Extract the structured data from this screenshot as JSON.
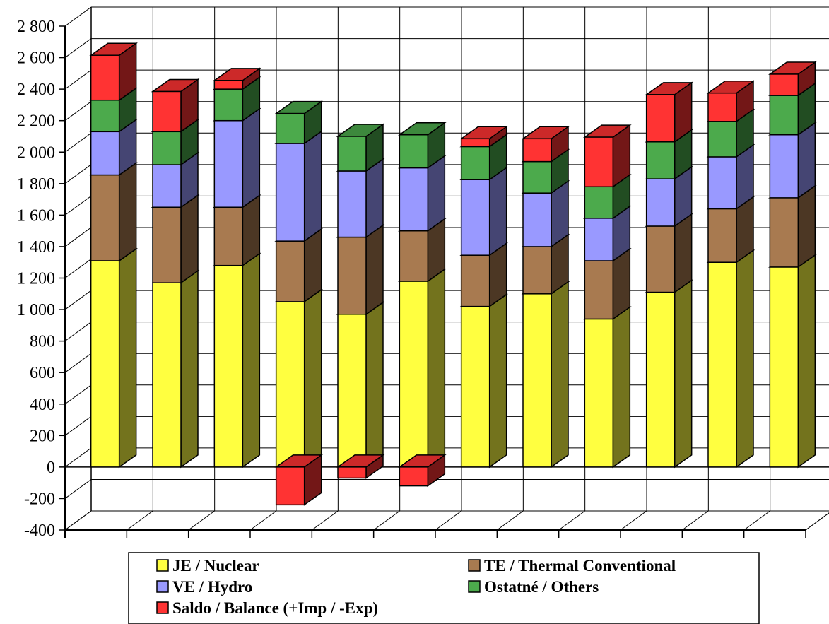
{
  "chart_data": {
    "type": "bar",
    "stacked": true,
    "three_d": true,
    "title": "",
    "xlabel": "",
    "ylabel": "",
    "ylim": [
      -400,
      2800
    ],
    "yticks": [
      {
        "value": 2800,
        "label": "2 800"
      },
      {
        "value": 2600,
        "label": "2 600"
      },
      {
        "value": 2400,
        "label": "2 400"
      },
      {
        "value": 2200,
        "label": "2 200"
      },
      {
        "value": 2000,
        "label": "2 000"
      },
      {
        "value": 1800,
        "label": "1 800"
      },
      {
        "value": 1600,
        "label": "1 600"
      },
      {
        "value": 1400,
        "label": "1 400"
      },
      {
        "value": 1200,
        "label": "1 200"
      },
      {
        "value": 1000,
        "label": "1 000"
      },
      {
        "value": 800,
        "label": "800"
      },
      {
        "value": 600,
        "label": "600"
      },
      {
        "value": 400,
        "label": "400"
      },
      {
        "value": 200,
        "label": "200"
      },
      {
        "value": 0,
        "label": "0"
      },
      {
        "value": -200,
        "label": "-200"
      },
      {
        "value": -400,
        "label": "-400"
      }
    ],
    "grid": true,
    "legend_position": "bottom",
    "categories": [
      "",
      "",
      "",
      "",
      "",
      "",
      "",
      "",
      "",
      "",
      "",
      ""
    ],
    "series": [
      {
        "name": "JE / Nuclear",
        "color": "#ffff40",
        "values": [
          1310,
          1170,
          1280,
          1050,
          970,
          1180,
          1020,
          1100,
          940,
          1110,
          1300,
          1270
        ]
      },
      {
        "name": "TE / Thermal Conventional",
        "color": "#a87a50",
        "values": [
          545,
          480,
          370,
          385,
          490,
          320,
          325,
          300,
          370,
          420,
          340,
          440
        ]
      },
      {
        "name": "VE / Hydro",
        "color": "#9999ff",
        "values": [
          275,
          270,
          550,
          620,
          420,
          400,
          480,
          340,
          270,
          300,
          330,
          400
        ]
      },
      {
        "name": "Ostatné / Others",
        "color": "#4caa4c",
        "values": [
          200,
          210,
          200,
          190,
          220,
          210,
          210,
          200,
          200,
          235,
          225,
          250
        ]
      },
      {
        "name": "Saldo / Balance (+Imp / -Exp)",
        "color": "#ff3333",
        "values": [
          285,
          255,
          55,
          -240,
          -70,
          -120,
          50,
          145,
          315,
          300,
          180,
          135
        ]
      }
    ]
  }
}
